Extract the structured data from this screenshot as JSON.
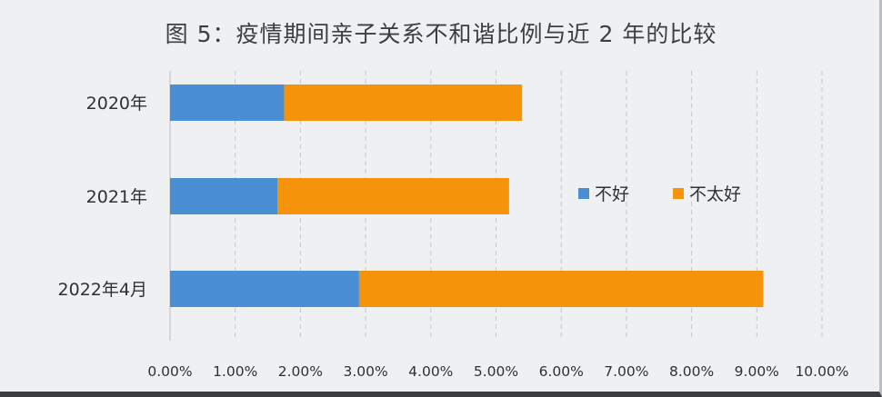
{
  "chart_data": {
    "type": "bar",
    "orientation": "horizontal",
    "stacked": true,
    "title": "图 5：疫情期间亲子关系不和谐比例与近 2 年的比较",
    "categories": [
      "2020年",
      "2021年",
      "2022年4月"
    ],
    "series": [
      {
        "name": "不好",
        "color": "#4a8fd4",
        "values": [
          1.75,
          1.65,
          2.9
        ]
      },
      {
        "name": "不太好",
        "color": "#f5930a",
        "values": [
          3.65,
          3.55,
          6.2
        ]
      }
    ],
    "xlim": [
      0,
      10
    ],
    "xticks": [
      "0.00%",
      "1.00%",
      "2.00%",
      "3.00%",
      "4.00%",
      "5.00%",
      "6.00%",
      "7.00%",
      "8.00%",
      "9.00%",
      "10.00%"
    ],
    "grid": "vertical dashed",
    "legend_position": "right-center"
  }
}
